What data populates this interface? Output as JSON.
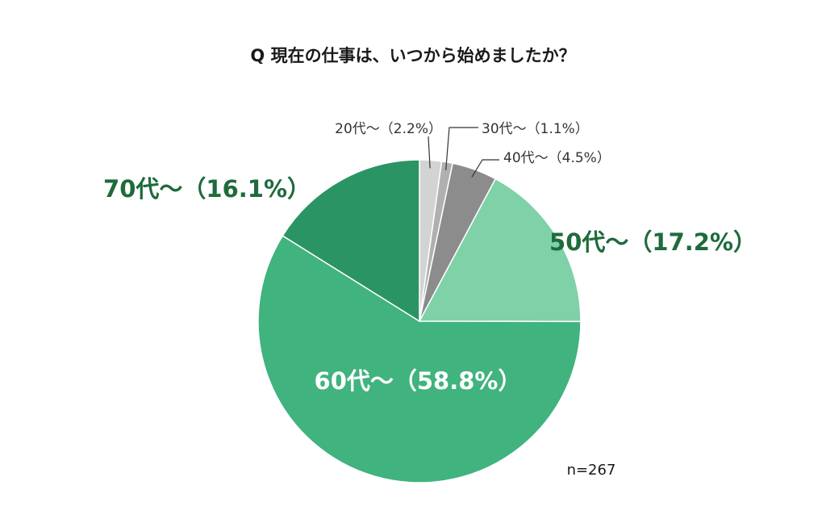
{
  "chart_data": {
    "type": "pie",
    "title": "Q 現在の仕事は、いつから始めましたか？",
    "sample_size_label": "n=267",
    "slices": [
      {
        "label": "20代〜（2.2%）",
        "value": 2.2,
        "color": "#d3d3d3"
      },
      {
        "label": "30代〜（1.1%）",
        "value": 1.1,
        "color": "#b0b0b0"
      },
      {
        "label": "40代〜（4.5%）",
        "value": 4.5,
        "color": "#8c8c8c"
      },
      {
        "label": "50代〜（17.2%）",
        "value": 17.2,
        "color": "#7fd1a8"
      },
      {
        "label": "60代〜（58.8%）",
        "value": 58.8,
        "color": "#40b37e"
      },
      {
        "label": "70代〜（16.1%）",
        "value": 16.1,
        "color": "#2a9465"
      }
    ],
    "label_color_emphasis": "#1e6b3c"
  }
}
